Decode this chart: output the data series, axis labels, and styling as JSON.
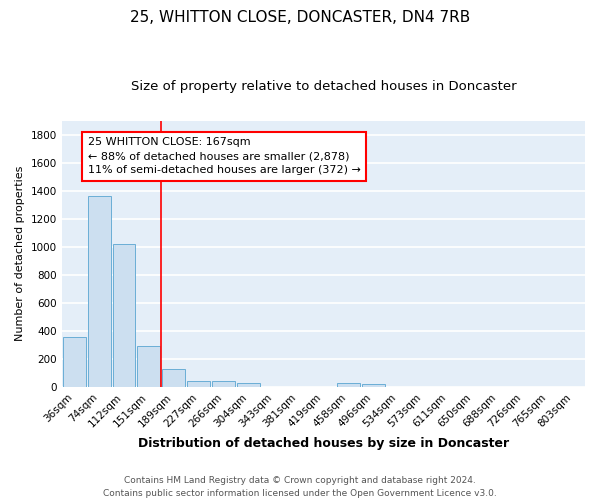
{
  "title": "25, WHITTON CLOSE, DONCASTER, DN4 7RB",
  "subtitle": "Size of property relative to detached houses in Doncaster",
  "xlabel": "Distribution of detached houses by size in Doncaster",
  "ylabel": "Number of detached properties",
  "bar_color": "#ccdff0",
  "bar_edge_color": "#6aaed6",
  "bg_color": "#e4eef8",
  "grid_color": "white",
  "categories": [
    "36sqm",
    "74sqm",
    "112sqm",
    "151sqm",
    "189sqm",
    "227sqm",
    "266sqm",
    "304sqm",
    "343sqm",
    "381sqm",
    "419sqm",
    "458sqm",
    "496sqm",
    "534sqm",
    "573sqm",
    "611sqm",
    "650sqm",
    "688sqm",
    "726sqm",
    "765sqm",
    "803sqm"
  ],
  "values": [
    355,
    1360,
    1020,
    290,
    130,
    43,
    40,
    30,
    0,
    0,
    0,
    30,
    20,
    0,
    0,
    0,
    0,
    0,
    0,
    0,
    0
  ],
  "red_line_x": 3.5,
  "annotation_line1": "25 WHITTON CLOSE: 167sqm",
  "annotation_line2": "← 88% of detached houses are smaller (2,878)",
  "annotation_line3": "11% of semi-detached houses are larger (372) →",
  "ylim": [
    0,
    1900
  ],
  "yticks": [
    0,
    200,
    400,
    600,
    800,
    1000,
    1200,
    1400,
    1600,
    1800
  ],
  "footer": "Contains HM Land Registry data © Crown copyright and database right 2024.\nContains public sector information licensed under the Open Government Licence v3.0.",
  "title_fontsize": 11,
  "subtitle_fontsize": 9.5,
  "xlabel_fontsize": 9,
  "ylabel_fontsize": 8,
  "tick_fontsize": 7.5,
  "annotation_fontsize": 8,
  "footer_fontsize": 6.5
}
